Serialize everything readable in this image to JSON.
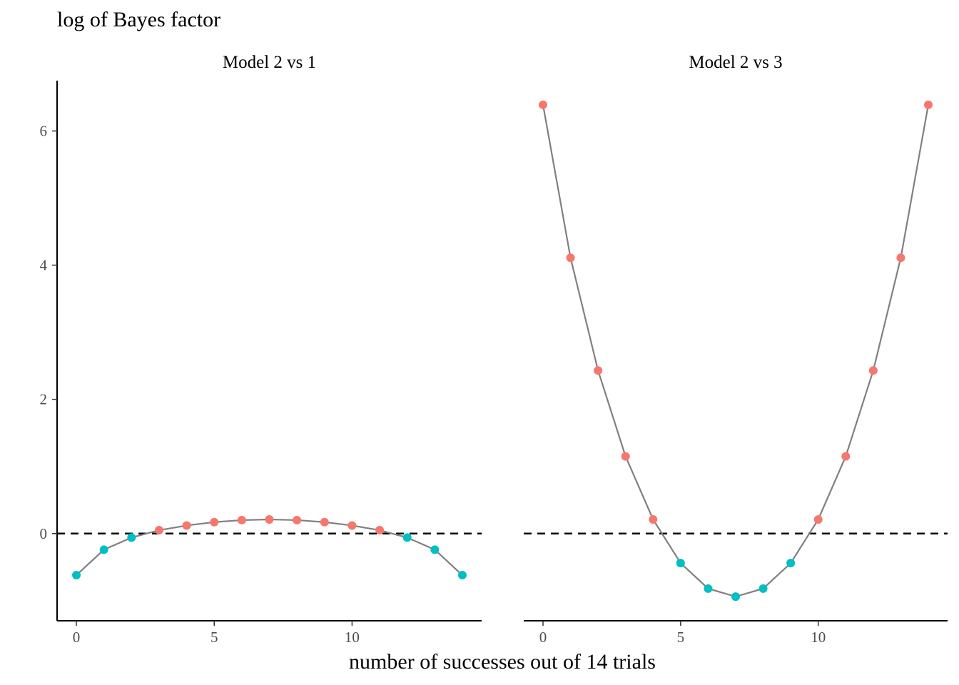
{
  "chart_data": {
    "type": "line",
    "ylabel": "log of Bayes factor",
    "xlabel": "number of successes out of 14 trials",
    "facets": [
      {
        "title": "Model 2 vs 1",
        "x": [
          0,
          1,
          2,
          3,
          4,
          5,
          6,
          7,
          8,
          9,
          10,
          11,
          12,
          13,
          14
        ],
        "y": [
          -0.62,
          -0.24,
          -0.06,
          0.05,
          0.12,
          0.17,
          0.2,
          0.21,
          0.2,
          0.17,
          0.12,
          0.05,
          -0.06,
          -0.24,
          -0.62
        ]
      },
      {
        "title": "Model 2 vs 3",
        "x": [
          0,
          1,
          2,
          3,
          4,
          5,
          6,
          7,
          8,
          9,
          10,
          11,
          12,
          13,
          14
        ],
        "y": [
          6.39,
          4.11,
          2.43,
          1.15,
          0.21,
          -0.44,
          -0.82,
          -0.94,
          -0.82,
          -0.44,
          0.21,
          1.15,
          2.43,
          4.11,
          6.39
        ]
      }
    ],
    "xlim": [
      -0.7,
      14.7
    ],
    "ylim": [
      -1.3,
      6.75
    ],
    "x_ticks": [
      0,
      5,
      10
    ],
    "y_ticks": [
      0,
      2,
      4,
      6
    ],
    "reference_line": {
      "y": 0,
      "style": "dashed",
      "color": "#000000"
    },
    "point_color_rule": "positive values red, negative values teal",
    "colors": {
      "positive": "#F8766D",
      "negative": "#00BFC4",
      "line": "#808080"
    },
    "grid": false,
    "legend": "none"
  }
}
